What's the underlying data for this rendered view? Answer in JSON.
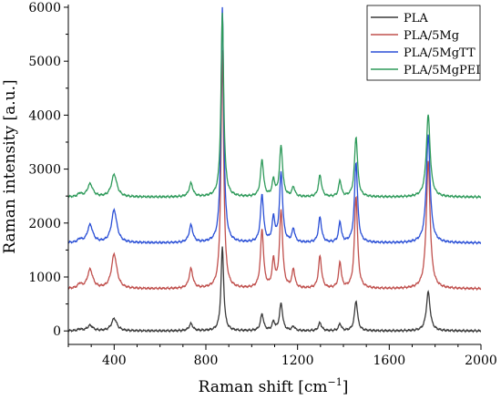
{
  "chart_data": {
    "type": "line",
    "xlabel": "Raman shift [cm",
    "xlabel_sup": "−1",
    "xlabel_end": "]",
    "ylabel": "Raman intensity [a.u.]",
    "xlim": [
      200,
      2000
    ],
    "ylim": [
      -250,
      6050
    ],
    "x_ticks": [
      400,
      800,
      1200,
      1600,
      2000
    ],
    "y_ticks": [
      0,
      1000,
      2000,
      3000,
      4000,
      5000,
      6000
    ],
    "legend_position": "top-right",
    "peaks_cm1": [
      250,
      295,
      400,
      735,
      872,
      1045,
      1095,
      1128,
      1182,
      1298,
      1385,
      1455,
      1770
    ],
    "series": [
      {
        "name": "PLA",
        "color": "#3a3a3a",
        "baseline": 0,
        "peak_heights": [
          30,
          100,
          230,
          130,
          1550,
          310,
          160,
          500,
          80,
          150,
          130,
          560,
          720
        ]
      },
      {
        "name": "PLA/5Mg",
        "color": "#c0504d",
        "baseline": 780,
        "peak_heights": [
          80,
          350,
          640,
          360,
          4400,
          1080,
          500,
          1420,
          350,
          600,
          480,
          1720,
          2360
        ]
      },
      {
        "name": "PLA/5MgTT",
        "color": "#2a4fd6",
        "baseline": 1630,
        "peak_heights": [
          60,
          330,
          610,
          320,
          4350,
          880,
          440,
          1280,
          250,
          470,
          380,
          1500,
          2000
        ]
      },
      {
        "name": "PLA/5MgPEI",
        "color": "#2e9a5a",
        "baseline": 2480,
        "peak_heights": [
          60,
          240,
          420,
          250,
          3400,
          680,
          300,
          930,
          180,
          400,
          300,
          1120,
          1520
        ]
      }
    ]
  }
}
